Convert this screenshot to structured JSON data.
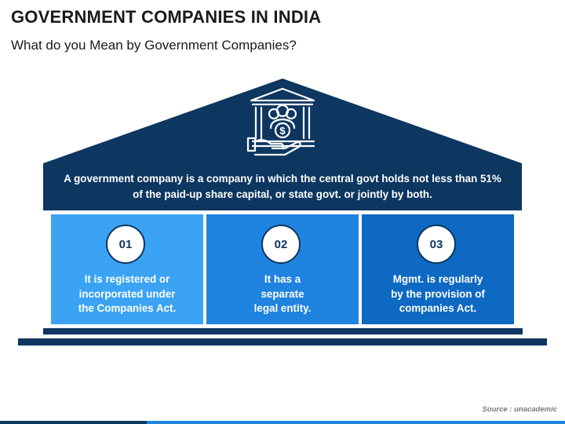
{
  "header": {
    "title": "GOVERNMENT COMPANIES IN INDIA",
    "subtitle": "What do you Mean by Government Companies?"
  },
  "icon": {
    "name": "government-building-people-icon"
  },
  "definition": "A government company is a company in which the central govt holds not less than 51% of the paid-up share capital, or state govt. or jointly by both.",
  "columns": [
    {
      "number": "01",
      "text": "It is registered or\nincorporated under\nthe Companies Act.",
      "color": "#3aa3f4"
    },
    {
      "number": "02",
      "text": "It has a\nseparate\nlegal entity.",
      "color": "#1f83e0"
    },
    {
      "number": "03",
      "text": "Mgmt. is regularly\nby the provision of\ncompanies Act.",
      "color": "#0d69c2"
    }
  ],
  "source": "Source : unacademic",
  "colors": {
    "dark_navy": "#0d3660"
  }
}
